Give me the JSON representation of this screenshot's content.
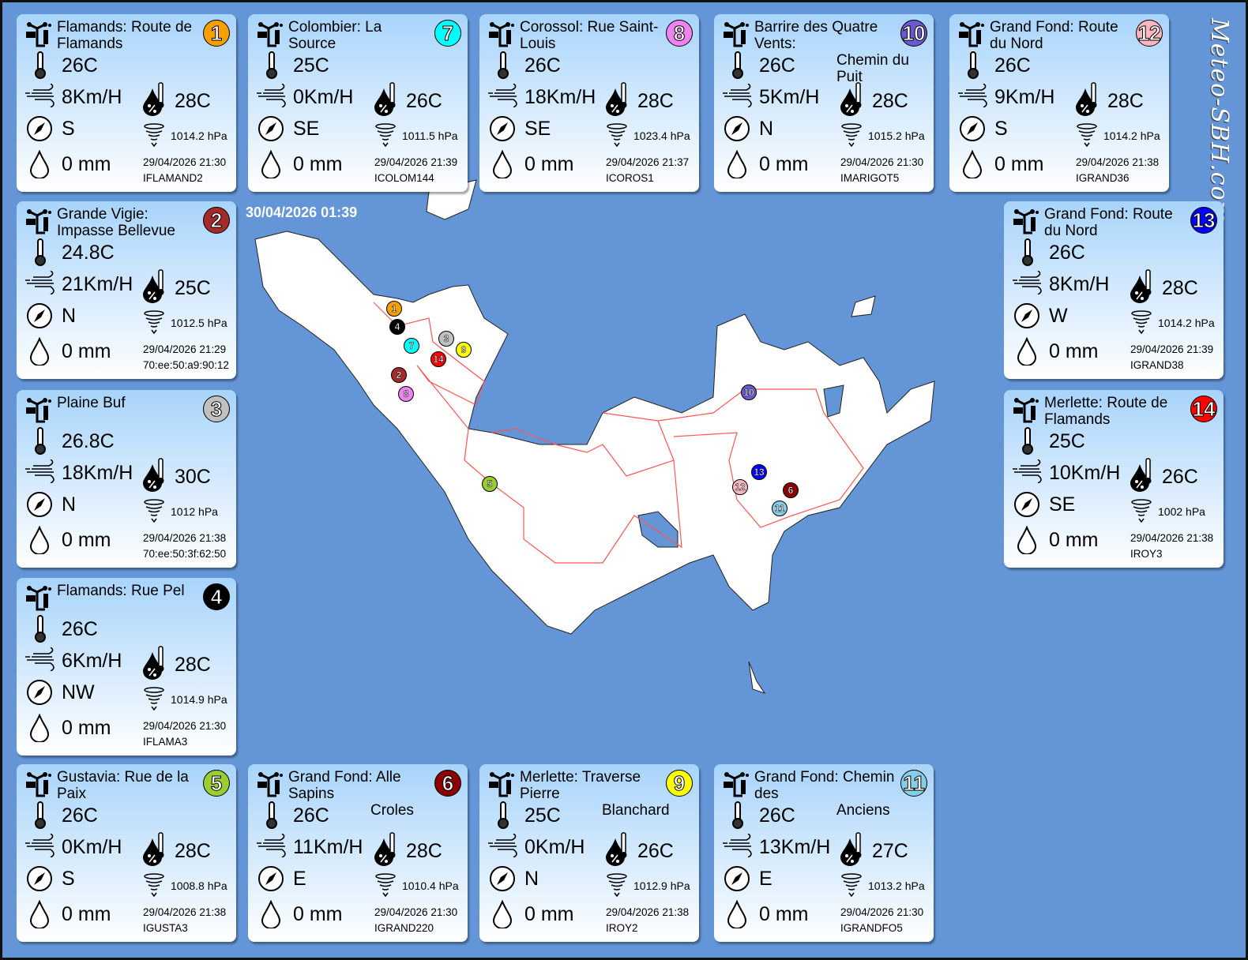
{
  "timestamp": "30/04/2026 01:39",
  "watermark": "Meteo-SBH.com",
  "stations": [
    {
      "num": "1",
      "color": "#f5a000",
      "title": "Flamands: Route de Flamands",
      "overflow": "",
      "temp": "26C",
      "wind": "8Km/H",
      "dir": "S",
      "rain": "0 mm",
      "feels": "28C",
      "pressure": "1014.2 hPa",
      "time": "29/04/2026 21:30",
      "id": "IFLAMAND2"
    },
    {
      "num": "7",
      "color": "#00ffff",
      "title": "Colombier: La Source",
      "overflow": "",
      "temp": "25C",
      "wind": "0Km/H",
      "dir": "SE",
      "rain": "0 mm",
      "feels": "26C",
      "pressure": "1011.5 hPa",
      "time": "29/04/2026 21:39",
      "id": "ICOLOM144"
    },
    {
      "num": "8",
      "color": "#ee82ee",
      "title": "Corossol: Rue Saint-Louis",
      "overflow": "",
      "temp": "26C",
      "wind": "18Km/H",
      "dir": "SE",
      "rain": "0 mm",
      "feels": "28C",
      "pressure": "1023.4 hPa",
      "time": "29/04/2026 21:37",
      "id": "ICOROS1"
    },
    {
      "num": "10",
      "color": "#6a5acd",
      "title": "Barrire des Quatre Vents:",
      "overflow": "Chemin du Puit",
      "temp": "26C",
      "wind": "5Km/H",
      "dir": "N",
      "rain": "0 mm",
      "feels": "28C",
      "pressure": "1015.2 hPa",
      "time": "29/04/2026 21:30",
      "id": "IMARIGOT5"
    },
    {
      "num": "12",
      "color": "#ffb6c1",
      "title": "Grand Fond: Route du Nord",
      "overflow": "",
      "temp": "26C",
      "wind": "9Km/H",
      "dir": "S",
      "rain": "0 mm",
      "feels": "28C",
      "pressure": "1014.2 hPa",
      "time": "29/04/2026 21:38",
      "id": "IGRAND36"
    },
    {
      "num": "2",
      "color": "#a52a2a",
      "title": "Grande Vigie: Impasse Bellevue",
      "overflow": "",
      "temp": "24.8C",
      "wind": "21Km/H",
      "dir": "N",
      "rain": "0 mm",
      "feels": "25C",
      "pressure": "1012.5 hPa",
      "time": "29/04/2026 21:29",
      "id": "70:ee:50:a9:90:12"
    },
    {
      "num": "3",
      "color": "#c0c0c0",
      "title": "Plaine  Buf",
      "overflow": "",
      "temp": "26.8C",
      "wind": "18Km/H",
      "dir": "N",
      "rain": "0 mm",
      "feels": "30C",
      "pressure": "1012 hPa",
      "time": "29/04/2026 21:38",
      "id": "70:ee:50:3f:62:50"
    },
    {
      "num": "4",
      "color": "#000000",
      "title": "Flamands: Rue Pel",
      "overflow": "",
      "temp": "26C",
      "wind": "6Km/H",
      "dir": "NW",
      "rain": "0 mm",
      "feels": "28C",
      "pressure": "1014.9 hPa",
      "time": "29/04/2026 21:30",
      "id": "IFLAMA3"
    },
    {
      "num": "5",
      "color": "#9acd32",
      "title": "Gustavia: Rue de la Paix",
      "overflow": "",
      "temp": "26C",
      "wind": "0Km/H",
      "dir": "S",
      "rain": "0 mm",
      "feels": "28C",
      "pressure": "1008.8 hPa",
      "time": "29/04/2026 21:38",
      "id": "IGUSTA3"
    },
    {
      "num": "6",
      "color": "#8b0000",
      "title": "Grand Fond: Alle Sapins",
      "overflow": "Croles",
      "temp": "26C",
      "wind": "11Km/H",
      "dir": "E",
      "rain": "0 mm",
      "feels": "28C",
      "pressure": "1010.4 hPa",
      "time": "29/04/2026 21:30",
      "id": "IGRAND220"
    },
    {
      "num": "9",
      "color": "#ffff00",
      "title": "Merlette: Traverse Pierre",
      "overflow": "Blanchard",
      "temp": "25C",
      "wind": "0Km/H",
      "dir": "N",
      "rain": "0 mm",
      "feels": "26C",
      "pressure": "1012.9 hPa",
      "time": "29/04/2026 21:38",
      "id": "IROY2"
    },
    {
      "num": "11",
      "color": "#87ceeb",
      "title": "Grand Fond: Chemin des",
      "overflow": "Anciens",
      "temp": "26C",
      "wind": "13Km/H",
      "dir": "E",
      "rain": "0 mm",
      "feels": "27C",
      "pressure": "1013.2 hPa",
      "time": "29/04/2026 21:30",
      "id": "IGRANDFO5"
    },
    {
      "num": "13",
      "color": "#0000ff",
      "title": "Grand Fond: Route du Nord",
      "overflow": "",
      "temp": "26C",
      "wind": "8Km/H",
      "dir": "W",
      "rain": "0 mm",
      "feels": "28C",
      "pressure": "1014.2 hPa",
      "time": "29/04/2026 21:39",
      "id": "IGRAND38"
    },
    {
      "num": "14",
      "color": "#ff0000",
      "title": "Merlette: Route de Flamands",
      "overflow": "",
      "temp": "25C",
      "wind": "10Km/H",
      "dir": "SE",
      "rain": "0 mm",
      "feels": "26C",
      "pressure": "1002 hPa",
      "time": "29/04/2026 21:38",
      "id": "IROY3"
    }
  ],
  "icons": {
    "station": "weather-station-icon",
    "temp": "thermometer-icon",
    "wind": "wind-icon",
    "dir": "compass-icon",
    "rain": "raindrop-icon",
    "feels": "humidity-feels-like-icon",
    "pressure": "barometer-icon"
  }
}
